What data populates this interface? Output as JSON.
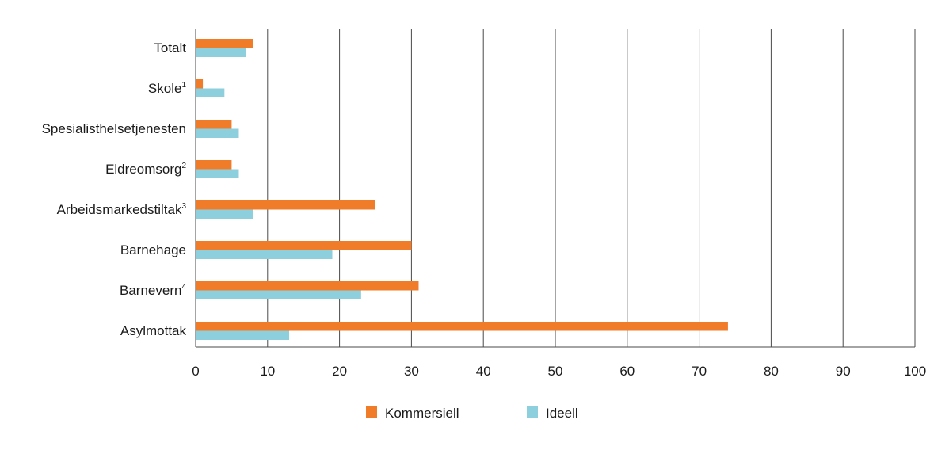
{
  "chart_data": {
    "type": "bar",
    "orientation": "horizontal",
    "categories": [
      {
        "label": "Totalt",
        "sup": ""
      },
      {
        "label": "Skole",
        "sup": "1"
      },
      {
        "label": "Spesialisthelsetjenesten",
        "sup": ""
      },
      {
        "label": "Eldreomsorg",
        "sup": "2"
      },
      {
        "label": "Arbeidsmarkedstiltak",
        "sup": "3"
      },
      {
        "label": "Barnehage",
        "sup": ""
      },
      {
        "label": "Barnevern",
        "sup": "4"
      },
      {
        "label": "Asylmottak",
        "sup": ""
      }
    ],
    "series": [
      {
        "name": "Kommersiell",
        "color": "#f07c2a",
        "values": [
          8,
          1,
          5,
          5,
          25,
          30,
          31,
          74
        ]
      },
      {
        "name": "Ideell",
        "color": "#8ecfdd",
        "values": [
          7,
          4,
          6,
          6,
          8,
          19,
          23,
          13
        ]
      }
    ],
    "xlim": [
      0,
      100
    ],
    "xticks": [
      0,
      10,
      20,
      30,
      40,
      50,
      60,
      70,
      80,
      90,
      100
    ],
    "grid": "vertical",
    "legend_position": "bottom-center",
    "title": "",
    "xlabel": "",
    "ylabel": ""
  }
}
